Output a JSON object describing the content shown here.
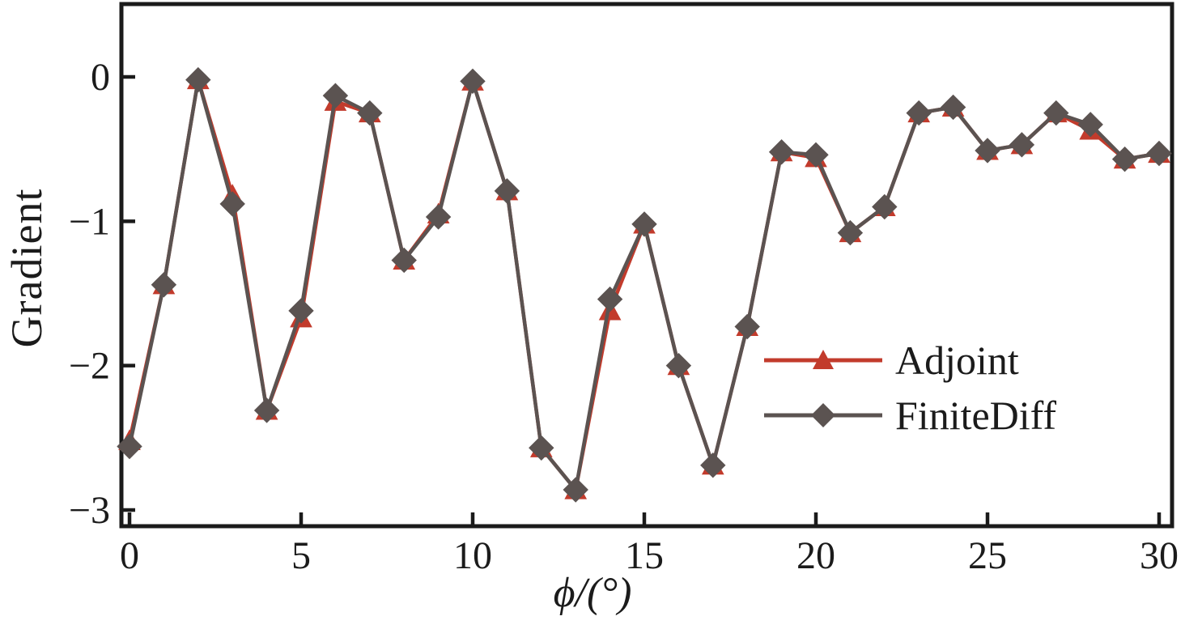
{
  "chart_data": {
    "type": "line",
    "title": "",
    "xlabel": "ϕ/(°)",
    "ylabel": "Gradient",
    "xlim": [
      0,
      30
    ],
    "ylim": [
      -3,
      0.5
    ],
    "grid": false,
    "legend_position": "inside-right",
    "axis_color": "#1b1b1b",
    "background_color": "#ffffff",
    "x": [
      0,
      1,
      2,
      3,
      4,
      5,
      6,
      7,
      8,
      9,
      10,
      11,
      12,
      13,
      14,
      15,
      16,
      17,
      18,
      19,
      20,
      21,
      22,
      23,
      24,
      25,
      26,
      27,
      28,
      29,
      30
    ],
    "xticks": {
      "values": [
        0,
        5,
        10,
        15,
        20,
        25,
        30
      ],
      "labels": [
        "0",
        "5",
        "10",
        "15",
        "20",
        "25",
        "30"
      ]
    },
    "yticks": {
      "values": [
        0,
        -1,
        -2,
        -3
      ],
      "labels": [
        "0",
        "−1",
        "−2",
        "−3"
      ]
    },
    "series": [
      {
        "name": "Adjoint",
        "color": "#c23b2c",
        "marker": "triangle",
        "values": [
          -2.52,
          -1.44,
          -0.02,
          -0.82,
          -2.31,
          -1.67,
          -0.17,
          -0.25,
          -1.27,
          -0.95,
          -0.03,
          -0.79,
          -2.57,
          -2.86,
          -1.62,
          -1.02,
          -2.0,
          -2.69,
          -1.73,
          -0.52,
          -0.56,
          -1.08,
          -0.9,
          -0.25,
          -0.21,
          -0.51,
          -0.47,
          -0.25,
          -0.37,
          -0.57,
          -0.53
        ]
      },
      {
        "name": "FiniteDiff",
        "color": "#5b5351",
        "marker": "diamond",
        "values": [
          -2.56,
          -1.44,
          -0.02,
          -0.88,
          -2.31,
          -1.62,
          -0.13,
          -0.25,
          -1.27,
          -0.97,
          -0.03,
          -0.79,
          -2.57,
          -2.86,
          -1.54,
          -1.02,
          -2.0,
          -2.69,
          -1.73,
          -0.52,
          -0.54,
          -1.08,
          -0.9,
          -0.25,
          -0.21,
          -0.51,
          -0.47,
          -0.25,
          -0.33,
          -0.57,
          -0.53
        ]
      }
    ]
  }
}
